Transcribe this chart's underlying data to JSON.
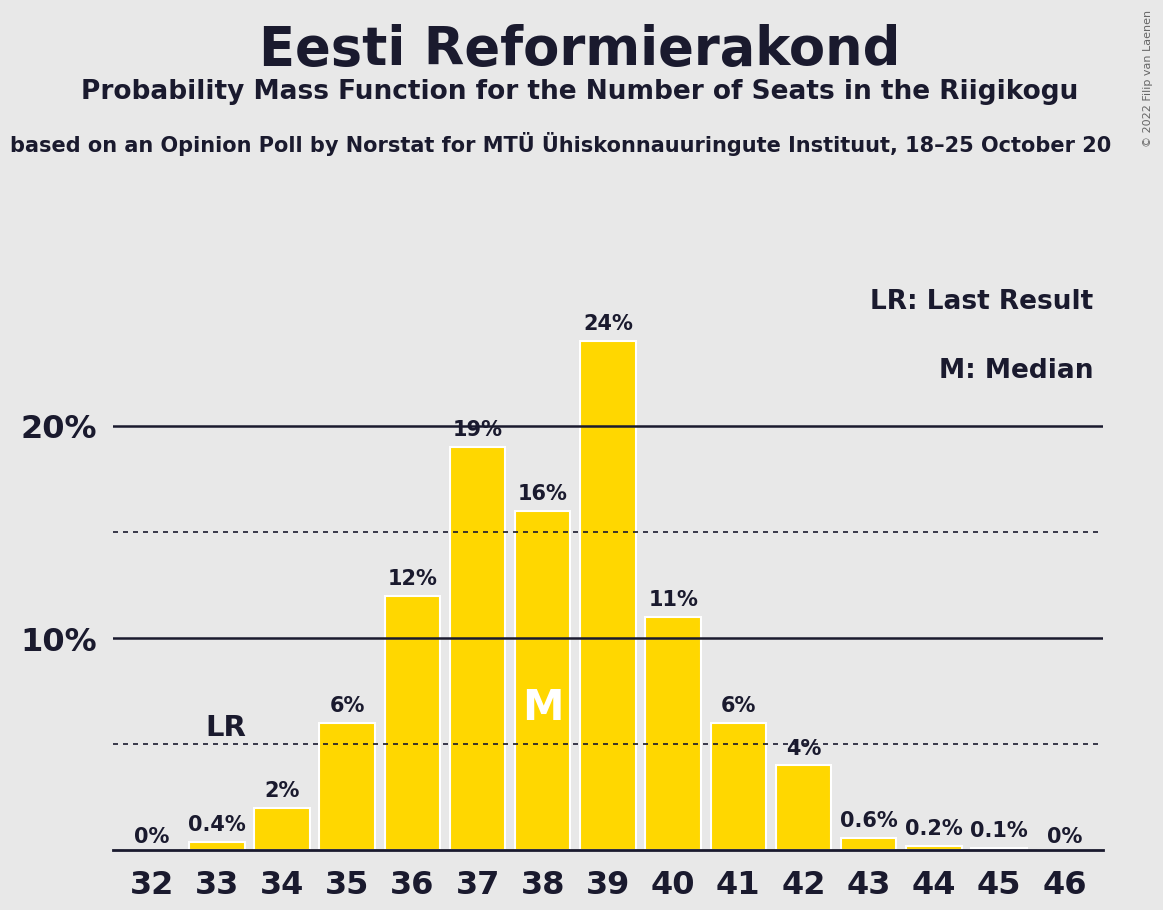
{
  "title": "Eesti Reformierakond",
  "subtitle": "Probability Mass Function for the Number of Seats in the Riigikogu",
  "source_line": "Based on an Opinion Poll by Norstat for MTU Ü hiskonnauuringute Instituut, 18–25 October 2022",
  "source_line_display": "based on an Opinion Poll by Norstat for MTÜ Ühiskonnauuringute Instituut, 18–25 October 20",
  "copyright": "© 2022 Filip van Laenen",
  "categories": [
    32,
    33,
    34,
    35,
    36,
    37,
    38,
    39,
    40,
    41,
    42,
    43,
    44,
    45,
    46
  ],
  "values": [
    0.0,
    0.4,
    2.0,
    6.0,
    12.0,
    19.0,
    16.0,
    24.0,
    11.0,
    6.0,
    4.0,
    0.6,
    0.2,
    0.1,
    0.0
  ],
  "labels": [
    "0%",
    "0.4%",
    "2%",
    "6%",
    "12%",
    "19%",
    "16%",
    "24%",
    "11%",
    "6%",
    "4%",
    "0.6%",
    "0.2%",
    "0.1%",
    "0%"
  ],
  "bar_color": "#FFD700",
  "bar_edge_color": "#FFFFFF",
  "background_color": "#E8E8E8",
  "text_color": "#1a1a2e",
  "median_seat": 38,
  "lr_seat": 34,
  "lr_line_value": 5.0,
  "dotted_line_values": [
    5.0,
    15.0
  ],
  "solid_line_values": [
    10.0,
    20.0
  ],
  "ylim_max": 27,
  "legend_lr": "LR: Last Result",
  "legend_m": "M: Median",
  "title_fontsize": 38,
  "subtitle_fontsize": 19,
  "source_fontsize": 15,
  "bar_label_fontsize": 15,
  "axis_tick_fontsize": 23,
  "ytick_fontsize": 23,
  "legend_fontsize": 19,
  "median_label_fontsize": 30,
  "lr_label_fontsize": 21
}
